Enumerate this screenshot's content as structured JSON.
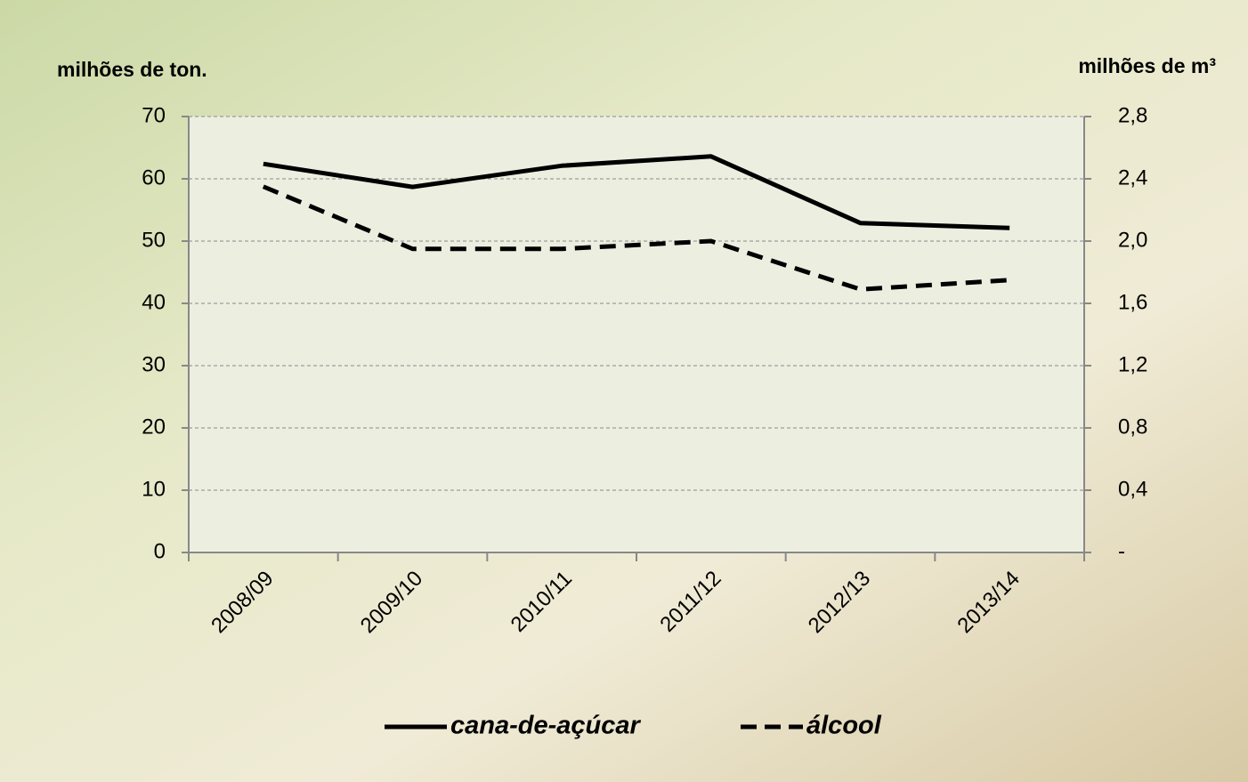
{
  "chart_data": {
    "type": "line",
    "y_label": "milhões de ton.",
    "y2_label": "milhões de m³",
    "categories": [
      "2008/09",
      "2009/10",
      "2010/11",
      "2011/12",
      "2012/13",
      "2013/14"
    ],
    "series": [
      {
        "name": "cana-de-açúcar",
        "color": "#000000",
        "line_style": "solid",
        "values": [
          62.4,
          58.7,
          62.1,
          63.6,
          52.9,
          52.1
        ]
      },
      {
        "name": "álcool",
        "color": "#000000",
        "line_style": "dashed",
        "axis": "y2",
        "values": [
          2.35,
          1.95,
          1.95,
          2.0,
          1.69,
          1.75
        ]
      }
    ],
    "ylim": [
      0,
      70
    ],
    "yticks": [
      0,
      10,
      20,
      30,
      40,
      50,
      60,
      70
    ],
    "y2lim": [
      0,
      2.8
    ],
    "y2ticks": [
      {
        "value": 0,
        "label": "-"
      },
      {
        "value": 0.4,
        "label": "0,4"
      },
      {
        "value": 0.8,
        "label": "0,8"
      },
      {
        "value": 1.2,
        "label": "1,2"
      },
      {
        "value": 1.6,
        "label": "1,6"
      },
      {
        "value": 2.0,
        "label": "2,0"
      },
      {
        "value": 2.4,
        "label": "2,4"
      },
      {
        "value": 2.8,
        "label": "2,8"
      }
    ],
    "grid": true,
    "legend": "bottom"
  }
}
